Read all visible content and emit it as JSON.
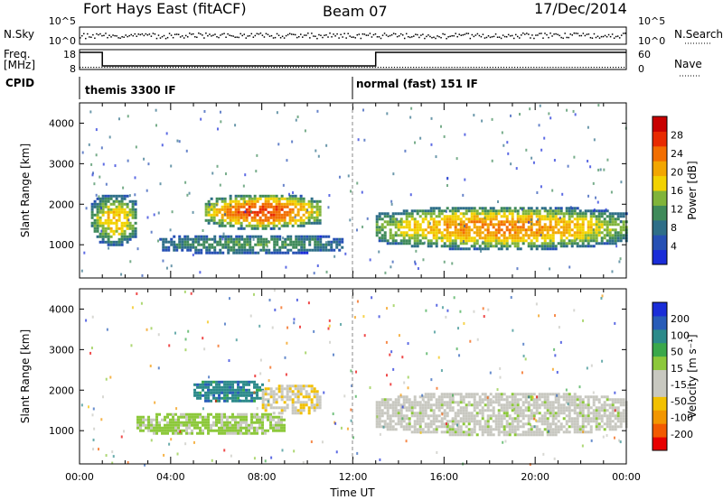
{
  "header": {
    "station": "Fort Hays East (fitACF)",
    "beam": "Beam 07",
    "date": "17/Dec/2014"
  },
  "nsky_panel": {
    "left_label": "N.Sky",
    "right_label": "N.Search",
    "left_ticks": [
      "10^5",
      "10^0"
    ],
    "right_ticks": [
      "10^5",
      "10^0"
    ]
  },
  "freq_panel": {
    "left_label_1": "Freq.",
    "left_label_2": "[MHz]",
    "right_label": "Nave",
    "left_ticks": [
      "18",
      "8"
    ],
    "right_ticks": [
      "60",
      "0"
    ]
  },
  "cpid_panel": {
    "label": "CPID",
    "modes": [
      {
        "text": "themis 3300 IF",
        "start_hour": 0
      },
      {
        "text": "normal (fast) 151 IF",
        "start_hour": 12
      }
    ]
  },
  "colors": {
    "power_scale": [
      "#1a2dd8",
      "#2650b4",
      "#2e6e88",
      "#3f8a5a",
      "#80b43a",
      "#f2d200",
      "#f2a600",
      "#f26e00",
      "#e82a00",
      "#c80000"
    ],
    "velocity_scale": [
      "#1a2dd8",
      "#285cb8",
      "#2c8a8a",
      "#3aa84a",
      "#8cc83a",
      "#c8c8c0",
      "#c8c8c0",
      "#f2c000",
      "#f29600",
      "#f25a00",
      "#e80000"
    ]
  },
  "chart_data": [
    {
      "type": "heatmap",
      "title": "Power",
      "xlabel": "",
      "ylabel": "Slant Range [km]",
      "xlim": [
        0,
        24
      ],
      "ylim": [
        180,
        4500
      ],
      "y_ticks": [
        "1000",
        "2000",
        "3000",
        "4000"
      ],
      "colorbar": {
        "label": "Power [dB]",
        "range": [
          0,
          32
        ],
        "ticks": [
          "4",
          "8",
          "12",
          "16",
          "20",
          "24",
          "28"
        ]
      },
      "features": [
        {
          "name": "early band",
          "hours": [
            0.5,
            2.5
          ],
          "range_km": [
            1000,
            2300
          ],
          "peak": 20
        },
        {
          "name": "mid arc",
          "hours": [
            5.5,
            10.5
          ],
          "range_km": [
            1400,
            2300
          ],
          "peak": 28
        },
        {
          "name": "low band",
          "hours": [
            3.5,
            11.5
          ],
          "range_km": [
            800,
            1300
          ],
          "peak": 12
        },
        {
          "name": "late band",
          "hours": [
            13.0,
            24.0
          ],
          "range_km": [
            900,
            2000
          ],
          "peak": 24
        }
      ]
    },
    {
      "type": "heatmap",
      "title": "Velocity",
      "xlabel": "Time UT",
      "ylabel": "Slant Range [km]",
      "xlim": [
        0,
        24
      ],
      "ylim": [
        180,
        4500
      ],
      "x_ticks": [
        "00:00",
        "04:00",
        "08:00",
        "12:00",
        "16:00",
        "20:00",
        "00:00"
      ],
      "y_ticks": [
        "1000",
        "2000",
        "3000",
        "4000"
      ],
      "colorbar": {
        "label": "Velocity [m s⁻¹]",
        "range": [
          -250,
          250
        ],
        "ticks": [
          "200",
          "100",
          "50",
          "15",
          "-15",
          "-50",
          "-100",
          "-200"
        ]
      },
      "features": [
        {
          "name": "blue arc",
          "hours": [
            5.0,
            8.0
          ],
          "range_km": [
            1700,
            2300
          ],
          "velocity": 150
        },
        {
          "name": "orange arc",
          "hours": [
            8.0,
            10.5
          ],
          "range_km": [
            1400,
            2200
          ],
          "velocity": -60
        },
        {
          "name": "green band",
          "hours": [
            2.5,
            9.0
          ],
          "range_km": [
            900,
            1500
          ],
          "velocity": 40
        },
        {
          "name": "ground scatter",
          "hours": [
            13.0,
            24.0
          ],
          "range_km": [
            900,
            2000
          ],
          "velocity": 0
        }
      ]
    }
  ]
}
